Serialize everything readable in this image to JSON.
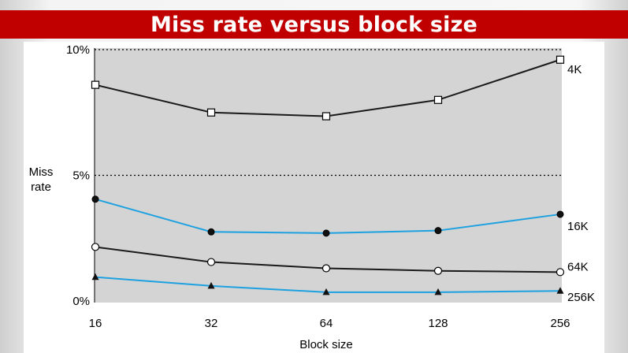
{
  "slide": {
    "title": "Miss rate versus block size"
  },
  "chart_data": {
    "type": "line",
    "title": "",
    "xlabel": "Block size",
    "ylabel": "Miss rate",
    "x_categories": [
      "16",
      "32",
      "64",
      "128",
      "256"
    ],
    "y_ticks": [
      "10%",
      "5%",
      "0%"
    ],
    "ylim": [
      0,
      10
    ],
    "grid": "dotted horizontal at 5% and 10%",
    "series": [
      {
        "name": "4K",
        "values": [
          8.6,
          7.5,
          7.35,
          8.0,
          9.6
        ],
        "color": "#1a1a1a",
        "marker": "open-square"
      },
      {
        "name": "16K",
        "values": [
          4.05,
          2.75,
          2.7,
          2.8,
          3.45
        ],
        "color": "#1ea1e0",
        "marker": "filled-circle"
      },
      {
        "name": "64K",
        "values": [
          2.15,
          1.55,
          1.3,
          1.2,
          1.15
        ],
        "color": "#1a1a1a",
        "marker": "open-circle"
      },
      {
        "name": "256K",
        "values": [
          0.95,
          0.6,
          0.35,
          0.35,
          0.4
        ],
        "color": "#1ea1e0",
        "marker": "filled-triangle"
      }
    ]
  }
}
